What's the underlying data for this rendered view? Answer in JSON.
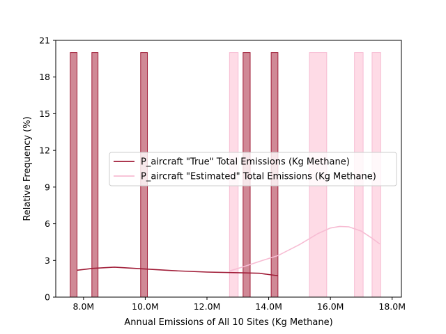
{
  "chart_data": {
    "type": "bar",
    "xlabel": "Annual Emissions of All 10 Sites (Kg Methane)",
    "ylabel": "Relative Frequency (%)",
    "xlim": [
      7.1,
      18.3
    ],
    "ylim": [
      0,
      21
    ],
    "x_ticks": [
      {
        "value": 8,
        "label": "8.0M"
      },
      {
        "value": 10,
        "label": "10.0M"
      },
      {
        "value": 12,
        "label": "12.0M"
      },
      {
        "value": 14,
        "label": "14.0M"
      },
      {
        "value": 16,
        "label": "16.0M"
      },
      {
        "value": 18,
        "label": "18.0M"
      }
    ],
    "y_ticks": [
      0,
      3,
      6,
      9,
      12,
      15,
      18,
      21
    ],
    "grid": false,
    "legend_position": "center-right",
    "series": [
      {
        "name": "P_aircraft \"True\" Total Emissions (Kg Methane)",
        "color": "#a01c37",
        "bar_fill": "#d08996",
        "bins": [
          {
            "x0": 7.57,
            "x1": 7.79,
            "value": 20
          },
          {
            "x0": 8.27,
            "x1": 8.47,
            "value": 20
          },
          {
            "x0": 9.85,
            "x1": 10.07,
            "value": 20
          },
          {
            "x0": 13.17,
            "x1": 13.4,
            "value": 20
          },
          {
            "x0": 14.08,
            "x1": 14.3,
            "value": 20
          }
        ],
        "kde": [
          [
            7.8,
            2.2
          ],
          [
            8.3,
            2.35
          ],
          [
            9.0,
            2.45
          ],
          [
            10.0,
            2.3
          ],
          [
            11.0,
            2.15
          ],
          [
            12.0,
            2.05
          ],
          [
            13.0,
            2.0
          ],
          [
            13.7,
            1.95
          ],
          [
            14.3,
            1.75
          ]
        ]
      },
      {
        "name": "P_aircraft \"Estimated\" Total Emissions (Kg Methane)",
        "color": "#f7bcd3",
        "bar_fill": "#fedbe6",
        "bins": [
          {
            "x0": 12.73,
            "x1": 13.01,
            "value": 20
          },
          {
            "x0": 15.32,
            "x1": 15.88,
            "value": 20
          },
          {
            "x0": 16.78,
            "x1": 17.06,
            "value": 20
          },
          {
            "x0": 17.35,
            "x1": 17.63,
            "value": 20
          }
        ],
        "kde": [
          [
            12.75,
            2.15
          ],
          [
            13.2,
            2.5
          ],
          [
            13.8,
            3.0
          ],
          [
            14.3,
            3.4
          ],
          [
            15.0,
            4.3
          ],
          [
            15.6,
            5.2
          ],
          [
            16.0,
            5.65
          ],
          [
            16.3,
            5.78
          ],
          [
            16.6,
            5.75
          ],
          [
            17.0,
            5.4
          ],
          [
            17.3,
            4.9
          ],
          [
            17.6,
            4.35
          ]
        ]
      }
    ]
  }
}
